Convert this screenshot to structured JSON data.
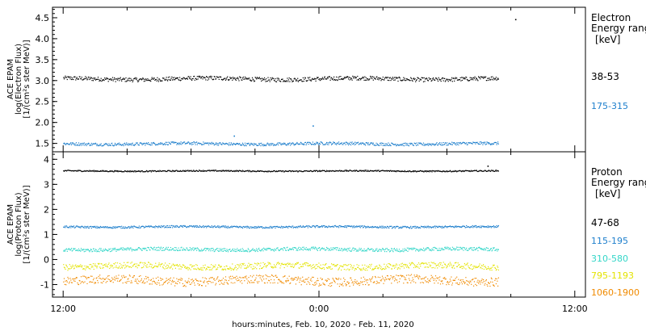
{
  "chart_data": [
    {
      "type": "scatter",
      "panel": "electron",
      "ylabel_lines": [
        "ACE EPAM",
        "log(Electron Flux)",
        "[1/(cm²s ster MeV)]"
      ],
      "ylim": [
        1.3,
        4.75
      ],
      "yticks": [
        1.5,
        2.0,
        2.5,
        3.0,
        3.5,
        4.0,
        4.5
      ],
      "ytick_labels": [
        "1.5",
        "2.0",
        "2.5",
        "3.0",
        "3.5",
        "4.0",
        "4.5"
      ],
      "legend_title_lines": [
        "Electron",
        "Energy ranges",
        "[keV]"
      ],
      "series": [
        {
          "name": "38-53",
          "color": "#000000",
          "level": 3.05,
          "spread": 0.05,
          "outliers": [
            {
              "x": 9.2,
              "y": 4.47
            }
          ]
        },
        {
          "name": "175-315",
          "color": "#1e7fcc",
          "level": 1.5,
          "spread": 0.035,
          "outliers": [
            {
              "x": -0.3,
              "y": 1.93
            },
            {
              "x": -4.0,
              "y": 1.69
            }
          ]
        }
      ]
    },
    {
      "type": "scatter",
      "panel": "proton",
      "ylabel_lines": [
        "ACE EPAM",
        "log(Proton Flux)",
        "[1/(cm²s ster MeV)]"
      ],
      "ylim": [
        -1.5,
        4.3
      ],
      "yticks": [
        -1,
        0,
        1,
        2,
        3,
        4
      ],
      "ytick_labels": [
        "-1",
        "0",
        "1",
        "2",
        "3",
        "4"
      ],
      "legend_title_lines": [
        "Proton",
        "Energy ranges",
        "[keV]"
      ],
      "series": [
        {
          "name": "47-68",
          "color": "#000000",
          "level": 3.55,
          "spread": 0.025,
          "outliers": [
            {
              "x": 7.9,
              "y": 3.75
            }
          ]
        },
        {
          "name": "115-195",
          "color": "#1e7fcc",
          "level": 1.32,
          "spread": 0.04,
          "outliers": []
        },
        {
          "name": "310-580",
          "color": "#33d6c8",
          "level": 0.42,
          "spread": 0.07,
          "outliers": []
        },
        {
          "name": "795-1193",
          "color": "#e3e300",
          "level": -0.25,
          "spread": 0.12,
          "outliers": []
        },
        {
          "name": "1060-1900",
          "color": "#f08a00",
          "level": -0.82,
          "spread": 0.17,
          "outliers": []
        }
      ]
    }
  ],
  "x_axis": {
    "range_hours": [
      -12.5,
      12.5
    ],
    "data_end_hours": 8.4,
    "major_ticks_hours": [
      -12,
      0,
      12
    ],
    "major_tick_labels": [
      "12:00",
      "0:00",
      "12:00"
    ],
    "minor_ticks_hours": [
      -9,
      -6,
      -3,
      3,
      6,
      9
    ],
    "xlabel": "hours:minutes, Feb. 10, 2020 - Feb. 11, 2020"
  }
}
